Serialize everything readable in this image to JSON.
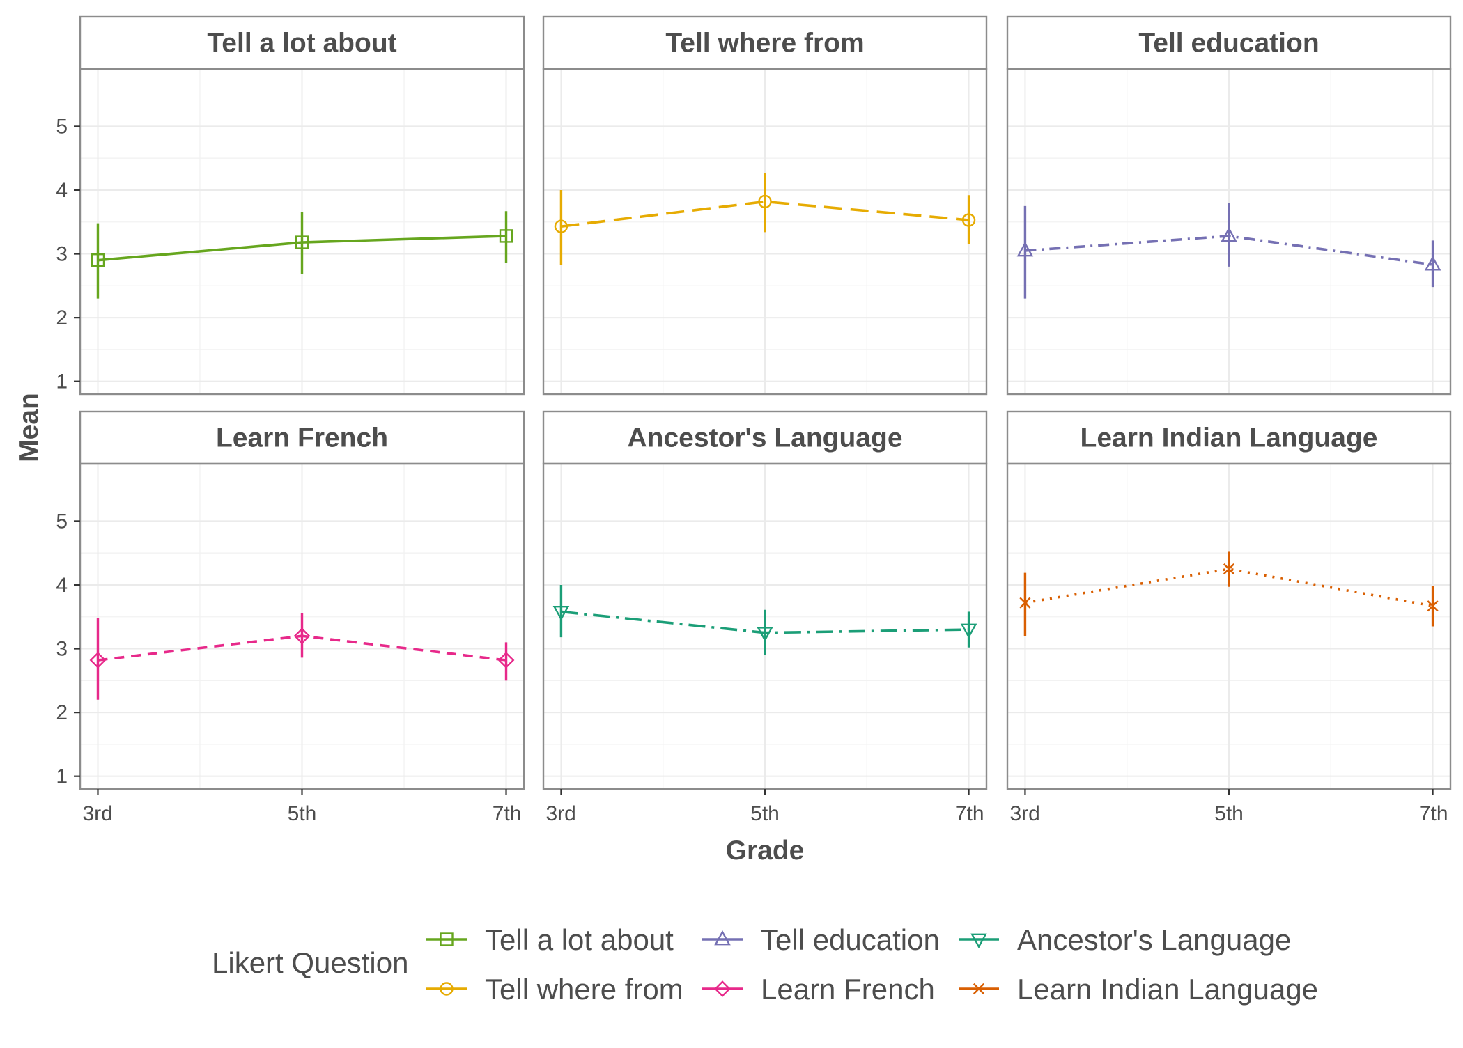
{
  "chart_data": {
    "type": "line",
    "facets": [
      {
        "title": "Tell a lot about",
        "series": "Tell a lot about"
      },
      {
        "title": "Tell where from",
        "series": "Tell where from"
      },
      {
        "title": "Tell education",
        "series": "Tell education"
      },
      {
        "title": "Learn French",
        "series": "Learn French"
      },
      {
        "title": "Ancestor's Language",
        "series": "Ancestor's Language"
      },
      {
        "title": "Learn Indian Language",
        "series": "Learn Indian Language"
      }
    ],
    "categories": [
      "3rd",
      "5th",
      "7th"
    ],
    "xlabel": "Grade",
    "ylabel": "Mean",
    "ylim": [
      1,
      5
    ],
    "yticks": [
      "1",
      "2",
      "3",
      "4",
      "5"
    ],
    "grid": true,
    "legend": {
      "title": "Likert Question",
      "position": "bottom"
    },
    "series": [
      {
        "name": "Tell a lot about",
        "color": "#66a61e",
        "marker": "square",
        "linetype": "solid",
        "values": [
          2.9,
          3.18,
          3.28
        ],
        "lower": [
          2.3,
          2.68,
          2.86
        ],
        "upper": [
          3.48,
          3.65,
          3.67
        ]
      },
      {
        "name": "Tell where from",
        "color": "#e6ab02",
        "marker": "circle",
        "linetype": "dashed-long",
        "values": [
          3.43,
          3.82,
          3.53
        ],
        "lower": [
          2.83,
          3.34,
          3.15
        ],
        "upper": [
          4.0,
          4.27,
          3.92
        ]
      },
      {
        "name": "Tell education",
        "color": "#7570b3",
        "marker": "triangle-up",
        "linetype": "dashdot",
        "values": [
          3.05,
          3.28,
          2.83
        ],
        "lower": [
          2.3,
          2.8,
          2.48
        ],
        "upper": [
          3.75,
          3.8,
          3.21
        ]
      },
      {
        "name": "Learn French",
        "color": "#e7298a",
        "marker": "diamond",
        "linetype": "dashed",
        "values": [
          2.82,
          3.2,
          2.82
        ],
        "lower": [
          2.2,
          2.86,
          2.5
        ],
        "upper": [
          3.48,
          3.56,
          3.1
        ]
      },
      {
        "name": "Ancestor's Language",
        "color": "#1b9e77",
        "marker": "triangle-down",
        "linetype": "dashdot-long",
        "values": [
          3.58,
          3.25,
          3.3
        ],
        "lower": [
          3.18,
          2.9,
          3.02
        ],
        "upper": [
          4.0,
          3.61,
          3.58
        ]
      },
      {
        "name": "Learn Indian Language",
        "color": "#d95f02",
        "marker": "x",
        "linetype": "dotted",
        "values": [
          3.72,
          4.25,
          3.67
        ],
        "lower": [
          3.2,
          3.97,
          3.35
        ],
        "upper": [
          4.19,
          4.53,
          3.98
        ]
      }
    ]
  }
}
